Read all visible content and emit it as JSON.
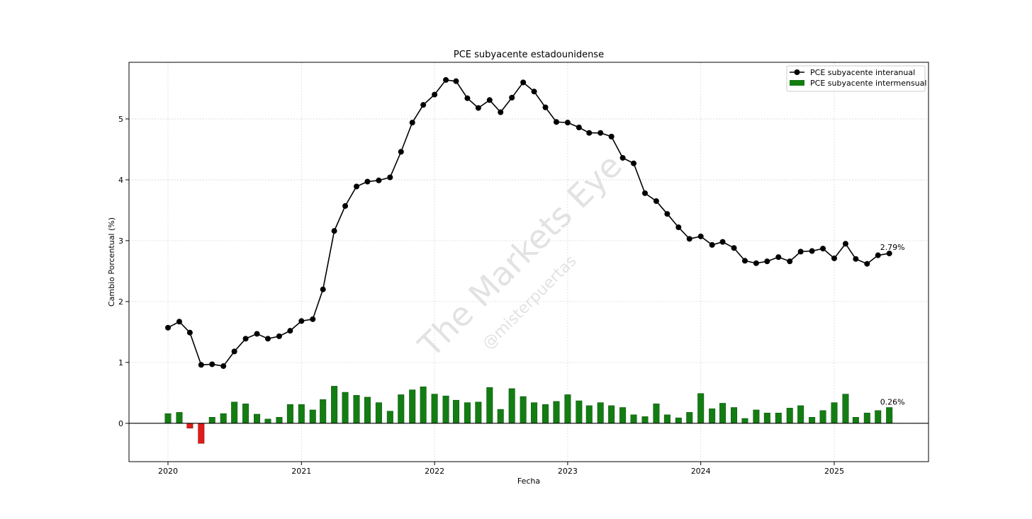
{
  "chart_data": {
    "type": "bar+line",
    "title": "PCE subyacente estadounidense",
    "xlabel": "Fecha",
    "ylabel": "Cambio Porcentual (%)",
    "x_ticks": [
      "2020",
      "2021",
      "2022",
      "2023",
      "2024",
      "2025"
    ],
    "y_ticks": [
      "0",
      "1",
      "2",
      "3",
      "4",
      "5"
    ],
    "ylim": [
      -0.63,
      5.93
    ],
    "grid": true,
    "legend_position": "top-right",
    "watermark": {
      "main": "The Markets Eye",
      "sub": "@misterpuertas"
    },
    "annotations": {
      "yoy_last": "2.79%",
      "mom_last": "0.26%"
    },
    "colors": {
      "line": "#000000",
      "bar_positive": "#137d13",
      "bar_negative": "#e01b1b"
    },
    "dates": [
      "2020-01",
      "2020-02",
      "2020-03",
      "2020-04",
      "2020-05",
      "2020-06",
      "2020-07",
      "2020-08",
      "2020-09",
      "2020-10",
      "2020-11",
      "2020-12",
      "2021-01",
      "2021-02",
      "2021-03",
      "2021-04",
      "2021-05",
      "2021-06",
      "2021-07",
      "2021-08",
      "2021-09",
      "2021-10",
      "2021-11",
      "2021-12",
      "2022-01",
      "2022-02",
      "2022-03",
      "2022-04",
      "2022-05",
      "2022-06",
      "2022-07",
      "2022-08",
      "2022-09",
      "2022-10",
      "2022-11",
      "2022-12",
      "2023-01",
      "2023-02",
      "2023-03",
      "2023-04",
      "2023-05",
      "2023-06",
      "2023-07",
      "2023-08",
      "2023-09",
      "2023-10",
      "2023-11",
      "2023-12",
      "2024-01",
      "2024-02",
      "2024-03",
      "2024-04",
      "2024-05",
      "2024-06",
      "2024-07",
      "2024-08",
      "2024-09",
      "2024-10",
      "2024-11",
      "2024-12",
      "2025-01",
      "2025-02",
      "2025-03",
      "2025-04",
      "2025-05",
      "2025-06"
    ],
    "series": [
      {
        "name": "PCE subyacente interanual",
        "type": "line",
        "values": [
          1.57,
          1.67,
          1.49,
          0.96,
          0.97,
          0.94,
          1.18,
          1.39,
          1.47,
          1.39,
          1.43,
          1.52,
          1.68,
          1.71,
          2.2,
          3.16,
          3.57,
          3.89,
          3.97,
          3.99,
          4.04,
          4.46,
          4.94,
          5.23,
          5.4,
          5.64,
          5.62,
          5.34,
          5.18,
          5.31,
          5.11,
          5.35,
          5.6,
          5.45,
          5.19,
          4.95,
          4.94,
          4.86,
          4.77,
          4.77,
          4.71,
          4.36,
          4.27,
          3.78,
          3.65,
          3.44,
          3.22,
          3.03,
          3.07,
          2.93,
          2.98,
          2.88,
          2.67,
          2.63,
          2.66,
          2.73,
          2.66,
          2.82,
          2.83,
          2.87,
          2.71,
          2.95,
          2.7,
          2.62,
          2.76,
          2.79
        ]
      },
      {
        "name": "PCE subyacente intermensual",
        "type": "bar",
        "values": [
          0.16,
          0.18,
          -0.08,
          -0.33,
          0.1,
          0.16,
          0.35,
          0.32,
          0.15,
          0.07,
          0.1,
          0.31,
          0.31,
          0.22,
          0.39,
          0.61,
          0.51,
          0.46,
          0.43,
          0.34,
          0.2,
          0.47,
          0.55,
          0.6,
          0.48,
          0.45,
          0.38,
          0.34,
          0.35,
          0.59,
          0.23,
          0.57,
          0.44,
          0.34,
          0.31,
          0.36,
          0.47,
          0.37,
          0.29,
          0.34,
          0.29,
          0.26,
          0.14,
          0.11,
          0.32,
          0.14,
          0.09,
          0.18,
          0.49,
          0.24,
          0.33,
          0.26,
          0.08,
          0.22,
          0.17,
          0.17,
          0.25,
          0.29,
          0.1,
          0.21,
          0.34,
          0.48,
          0.1,
          0.17,
          0.21,
          0.26
        ]
      }
    ]
  }
}
